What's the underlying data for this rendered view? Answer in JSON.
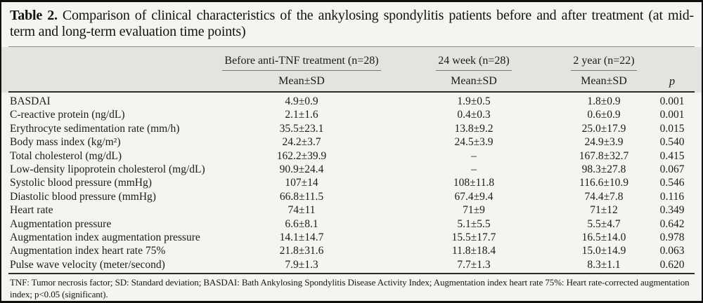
{
  "title": {
    "label": "Table 2.",
    "text": "Comparison of clinical characteristics of the ankylosing spondylitis patients before and after treatment (at mid-term and long-term evaluation time points)"
  },
  "table": {
    "col_groups": [
      {
        "label": "Before anti-TNF treatment (n=28)",
        "sub": "Mean±SD"
      },
      {
        "label": "24 week (n=28)",
        "sub": "Mean±SD"
      },
      {
        "label": "2 year (n=22)",
        "sub": "Mean±SD"
      }
    ],
    "p_header": "p",
    "rows": [
      {
        "label": "BASDAI",
        "before": "4.9±0.9",
        "week24": "1.9±0.5",
        "year2": "1.8±0.9",
        "p": "0.001"
      },
      {
        "label": "C-reactive protein (ng/dL)",
        "before": "2.1±1.6",
        "week24": "0.4±0.3",
        "year2": "0.6±0.9",
        "p": "0.001"
      },
      {
        "label": "Erythrocyte sedimentation rate (mm/h)",
        "before": "35.5±23.1",
        "week24": "13.8±9.2",
        "year2": "25.0±17.9",
        "p": "0.015"
      },
      {
        "label": "Body mass index (kg/m²)",
        "before": "24.2±3.7",
        "week24": "24.5±3.9",
        "year2": "24.9±3.9",
        "p": "0.540"
      },
      {
        "label": "Total cholesterol (mg/dL)",
        "before": "162.2±39.9",
        "week24": "–",
        "year2": "167.8±32.7",
        "p": "0.415"
      },
      {
        "label": "Low-density lipoprotein cholesterol (mg/dL)",
        "before": "90.9±24.4",
        "week24": "–",
        "year2": "98.3±27.8",
        "p": "0.067"
      },
      {
        "label": "Systolic blood pressure (mmHg)",
        "before": "107±14",
        "week24": "108±11.8",
        "year2": "116.6±10.9",
        "p": "0.546"
      },
      {
        "label": "Diastolic blood pressure (mmHg)",
        "before": "66.8±11.5",
        "week24": "67.4±9.4",
        "year2": "74.4±7.8",
        "p": "0.116"
      },
      {
        "label": "Heart rate",
        "before": "74±11",
        "week24": "71±9",
        "year2": "71±12",
        "p": "0.349"
      },
      {
        "label": "Augmentation pressure",
        "before": "6.6±8.1",
        "week24": "5.1±5.5",
        "year2": "5.5±4.7",
        "p": "0.642"
      },
      {
        "label": "Augmentation index augmentation pressure",
        "before": "14.1±14.7",
        "week24": "15.5±17.7",
        "year2": "16.5±14.0",
        "p": "0.978"
      },
      {
        "label": "Augmentation index heart rate 75%",
        "before": "21.8±31.6",
        "week24": "11.8±18.4",
        "year2": "15.0±14.9",
        "p": "0.063"
      },
      {
        "label": "Pulse wave velocity (meter/second)",
        "before": "7.9±1.3",
        "week24": "7.7±1.3",
        "year2": "8.3±1.1",
        "p": "0.620"
      }
    ]
  },
  "footnote": "TNF: Tumor necrosis factor; SD: Standard deviation; BASDAI: Bath Ankylosing Spondylitis Disease Activity Index; Augmentation index heart rate 75%: Heart rate-corrected augmentation index; p<0.05 (significant).",
  "colors": {
    "background": "#f4f4f1",
    "header_band": "#e3e3e0",
    "border": "#101010"
  }
}
